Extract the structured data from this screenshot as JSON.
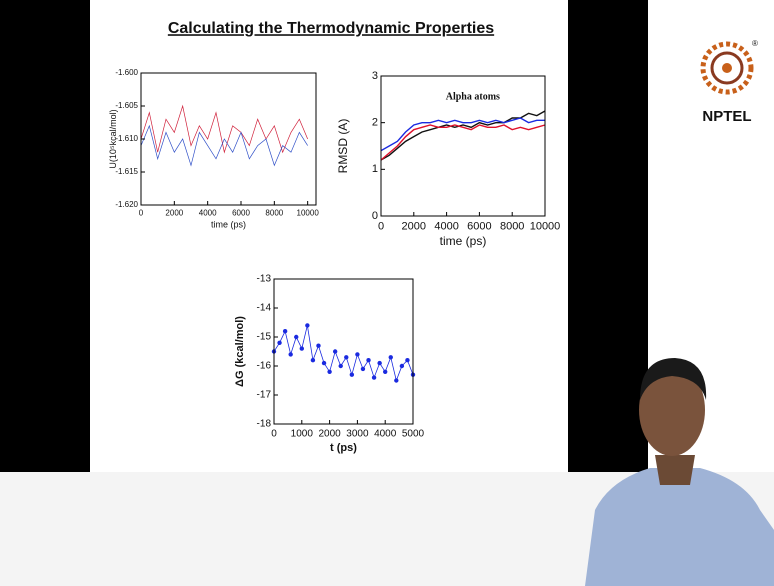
{
  "slide": {
    "title": "Calculating the Thermodynamic Properties"
  },
  "logo": {
    "text": "NPTEL",
    "mark": "®"
  },
  "chart_data": [
    {
      "type": "line",
      "ylabel": "U(10⁵kcal/mol)",
      "xlabel": "time (ps)",
      "x": [
        0,
        500,
        1000,
        1500,
        2000,
        2500,
        3000,
        3500,
        4000,
        4500,
        5000,
        5500,
        6000,
        6500,
        7000,
        7500,
        8000,
        8500,
        9000,
        9500,
        10000
      ],
      "series": [
        {
          "color": "#d0203a",
          "values": [
            -1.61,
            -1.606,
            -1.612,
            -1.607,
            -1.609,
            -1.605,
            -1.611,
            -1.608,
            -1.61,
            -1.606,
            -1.612,
            -1.608,
            -1.609,
            -1.611,
            -1.607,
            -1.61,
            -1.608,
            -1.612,
            -1.609,
            -1.607,
            -1.61
          ]
        },
        {
          "color": "#3050c8",
          "values": [
            -1.611,
            -1.608,
            -1.613,
            -1.609,
            -1.612,
            -1.61,
            -1.614,
            -1.609,
            -1.611,
            -1.613,
            -1.61,
            -1.612,
            -1.609,
            -1.613,
            -1.611,
            -1.61,
            -1.614,
            -1.611,
            -1.612,
            -1.609,
            -1.611
          ]
        }
      ],
      "xlim": [
        0,
        10500
      ],
      "xticks": [
        0,
        2000,
        4000,
        6000,
        8000,
        10000
      ],
      "ylim": [
        -1.62,
        -1.6
      ],
      "yticks": [
        {
          "value": -1.62,
          "label": "-1.620"
        },
        -1.615,
        {
          "value": -1.61,
          "label": "-1.610"
        },
        -1.605,
        {
          "value": -1.6,
          "label": "-1.600"
        }
      ]
    },
    {
      "type": "line",
      "ylabel": "RMSD (A)",
      "xlabel": "time (ps)",
      "annotation": "Alpha atoms",
      "x": [
        0,
        500,
        1000,
        1500,
        2000,
        2500,
        3000,
        3500,
        4000,
        4500,
        5000,
        5500,
        6000,
        6500,
        7000,
        7500,
        8000,
        8500,
        9000,
        9500,
        10000
      ],
      "series": [
        {
          "color": "#111111",
          "values": [
            1.2,
            1.3,
            1.45,
            1.6,
            1.7,
            1.8,
            1.85,
            1.9,
            1.95,
            1.9,
            1.95,
            1.9,
            2.0,
            1.95,
            2.0,
            2.0,
            2.1,
            2.1,
            2.2,
            2.15,
            2.25
          ]
        },
        {
          "color": "#e0102a",
          "values": [
            1.2,
            1.35,
            1.5,
            1.7,
            1.85,
            1.9,
            1.95,
            1.9,
            1.9,
            1.95,
            1.9,
            1.85,
            1.95,
            1.9,
            1.9,
            1.95,
            1.85,
            1.9,
            1.85,
            1.9,
            1.95
          ]
        },
        {
          "color": "#1a2ae0",
          "values": [
            1.4,
            1.5,
            1.6,
            1.8,
            1.95,
            2.0,
            2.0,
            2.05,
            2.0,
            2.05,
            2.0,
            2.0,
            2.05,
            2.0,
            2.05,
            2.0,
            2.05,
            2.1,
            2.0,
            2.05,
            2.05
          ]
        }
      ],
      "xlim": [
        0,
        10000
      ],
      "xticks": [
        0,
        2000,
        4000,
        6000,
        8000,
        10000
      ],
      "ylim": [
        0,
        3
      ],
      "yticks": [
        0,
        1,
        2,
        3
      ]
    },
    {
      "type": "line",
      "markers": true,
      "ylabel": "ΔG (kcal/mol)",
      "xlabel": "t (ps)",
      "x": [
        0,
        200,
        400,
        600,
        800,
        1000,
        1200,
        1400,
        1600,
        1800,
        2000,
        2200,
        2400,
        2600,
        2800,
        3000,
        3200,
        3400,
        3600,
        3800,
        4000,
        4200,
        4400,
        4600,
        4800,
        5000
      ],
      "series": [
        {
          "color": "#1a2ae0",
          "values": [
            -15.5,
            -15.2,
            -14.8,
            -15.6,
            -15.0,
            -15.4,
            -14.6,
            -15.8,
            -15.3,
            -15.9,
            -16.2,
            -15.5,
            -16.0,
            -15.7,
            -16.3,
            -15.6,
            -16.1,
            -15.8,
            -16.4,
            -15.9,
            -16.2,
            -15.7,
            -16.5,
            -16.0,
            -15.8,
            -16.3
          ]
        }
      ],
      "xlim": [
        0,
        5000
      ],
      "xticks": [
        0,
        1000,
        2000,
        3000,
        4000,
        5000
      ],
      "ylim": [
        -18,
        -13
      ],
      "yticks": [
        -18,
        -17,
        -16,
        -15,
        -14,
        -13
      ]
    }
  ]
}
